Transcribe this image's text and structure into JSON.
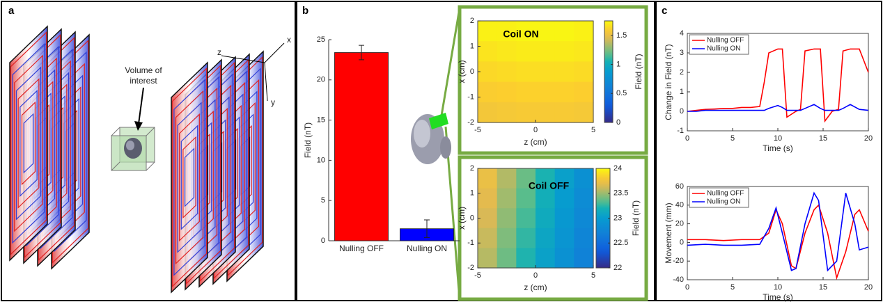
{
  "panel_labels": [
    "a",
    "b",
    "c"
  ],
  "diagram": {
    "annotation": [
      "Volume of",
      "interest"
    ],
    "axes": [
      "x",
      "y",
      "z"
    ]
  },
  "chart_data": [
    {
      "type": "bar",
      "ylabel": "Field (nT)",
      "categories": [
        "Nulling OFF",
        "Nulling ON"
      ],
      "values": [
        23.4,
        1.5
      ],
      "errors": [
        0.9,
        1.1
      ],
      "colors": [
        "#ff0000",
        "#0000ff"
      ],
      "ylim": [
        0,
        25
      ],
      "yticks": [
        0,
        5,
        10,
        15,
        20,
        25
      ]
    },
    {
      "type": "heatmap",
      "title": "Coil ON",
      "xlabel": "z (cm)",
      "ylabel": "x (cm)",
      "colorbar_label": "Field (nT)",
      "colormap": "parula",
      "xlim": [
        -5,
        5
      ],
      "xticks": [
        -5,
        0,
        5
      ],
      "ylim": [
        -2,
        2
      ],
      "yticks": [
        -2,
        -1,
        0,
        1,
        2
      ],
      "clim": [
        0,
        1.75
      ],
      "cticks": [
        0,
        0.5,
        1,
        1.5
      ],
      "values": [
        [
          1.72,
          1.72,
          1.73,
          1.73,
          1.73,
          1.72
        ],
        [
          1.68,
          1.69,
          1.7,
          1.7,
          1.7,
          1.69
        ],
        [
          1.64,
          1.65,
          1.66,
          1.66,
          1.66,
          1.65
        ],
        [
          1.6,
          1.61,
          1.62,
          1.62,
          1.62,
          1.61
        ],
        [
          1.56,
          1.57,
          1.58,
          1.58,
          1.58,
          1.57
        ]
      ]
    },
    {
      "type": "heatmap",
      "title": "Coil OFF",
      "xlabel": "z (cm)",
      "ylabel": "x (cm)",
      "colorbar_label": "Field (nT)",
      "colormap": "parula",
      "xlim": [
        -5,
        5
      ],
      "xticks": [
        -5,
        0,
        5
      ],
      "ylim": [
        -2,
        2
      ],
      "yticks": [
        -2,
        -1,
        0,
        1,
        2
      ],
      "clim": [
        22,
        24
      ],
      "cticks": [
        22,
        22.5,
        23,
        23.5,
        24
      ],
      "values": [
        [
          23.72,
          23.55,
          23.38,
          23.21,
          23.04,
          22.87
        ],
        [
          23.68,
          23.51,
          23.34,
          23.17,
          23.0,
          22.83
        ],
        [
          23.64,
          23.47,
          23.3,
          23.13,
          22.96,
          22.79
        ],
        [
          23.6,
          23.43,
          23.26,
          23.09,
          22.92,
          22.75
        ],
        [
          23.56,
          23.39,
          23.22,
          23.05,
          22.88,
          22.71
        ]
      ]
    },
    {
      "type": "line",
      "xlabel": "Time (s)",
      "ylabel": "Change in Field (nT)",
      "legend": "upper left",
      "xlim": [
        0,
        20
      ],
      "xticks": [
        0,
        5,
        10,
        15,
        20
      ],
      "ylim": [
        -1,
        4
      ],
      "yticks": [
        -1,
        0,
        1,
        2,
        3,
        4
      ],
      "x": [
        0,
        1,
        2,
        3,
        4,
        5,
        6,
        7,
        8,
        8.5,
        9,
        10,
        10.5,
        11,
        12,
        12.5,
        13,
        14,
        14.7,
        15.2,
        16,
        16.7,
        17.2,
        18,
        19,
        20
      ],
      "series": [
        {
          "name": "Nulling OFF",
          "color": "#ff0000",
          "values": [
            0,
            0.05,
            0.1,
            0.12,
            0.15,
            0.15,
            0.2,
            0.2,
            0.25,
            1.5,
            3.0,
            3.2,
            3.2,
            -0.3,
            0,
            0.1,
            3.1,
            3.2,
            3.2,
            -0.5,
            0,
            0.1,
            3.1,
            3.2,
            3.2,
            2.0
          ]
        },
        {
          "name": "Nulling ON",
          "color": "#0000ff",
          "values": [
            0,
            0,
            0.05,
            0.05,
            0.05,
            0.05,
            0.05,
            0.05,
            0.05,
            0.05,
            0.15,
            0.3,
            0.2,
            0.05,
            0.05,
            0.05,
            0.15,
            0.35,
            0.15,
            0.05,
            0.05,
            0.05,
            0.15,
            0.35,
            0.1,
            0.05
          ]
        }
      ]
    },
    {
      "type": "line",
      "xlabel": "Time (s)",
      "ylabel": "Movement (mm)",
      "legend": "upper left",
      "xlim": [
        0,
        20
      ],
      "xticks": [
        0,
        5,
        10,
        15,
        20
      ],
      "ylim": [
        -40,
        60
      ],
      "yticks": [
        -40,
        -20,
        0,
        20,
        40,
        60
      ],
      "x": [
        0,
        2,
        4,
        6,
        8,
        9,
        9.8,
        10.5,
        11.5,
        12,
        13,
        14,
        14.5,
        15.5,
        16.5,
        17.5,
        18.5,
        19,
        20
      ],
      "series": [
        {
          "name": "Nulling OFF",
          "color": "#ff0000",
          "values": [
            3,
            3,
            2,
            3,
            3,
            10,
            35,
            20,
            -25,
            -28,
            10,
            35,
            40,
            10,
            -38,
            -10,
            30,
            35,
            12
          ]
        },
        {
          "name": "Nulling ON",
          "color": "#0000ff",
          "values": [
            -3,
            -2,
            -3,
            -3,
            -2,
            15,
            37,
            10,
            -30,
            -28,
            20,
            53,
            45,
            -30,
            -20,
            53,
            20,
            -8,
            -5
          ]
        }
      ]
    }
  ]
}
